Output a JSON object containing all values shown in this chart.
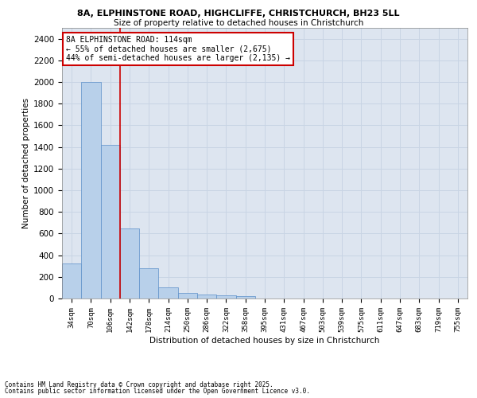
{
  "title1": "8A, ELPHINSTONE ROAD, HIGHCLIFFE, CHRISTCHURCH, BH23 5LL",
  "title2": "Size of property relative to detached houses in Christchurch",
  "xlabel": "Distribution of detached houses by size in Christchurch",
  "ylabel": "Number of detached properties",
  "footnote1": "Contains HM Land Registry data © Crown copyright and database right 2025.",
  "footnote2": "Contains public sector information licensed under the Open Government Licence v3.0.",
  "categories": [
    "34sqm",
    "70sqm",
    "106sqm",
    "142sqm",
    "178sqm",
    "214sqm",
    "250sqm",
    "286sqm",
    "322sqm",
    "358sqm",
    "395sqm",
    "431sqm",
    "467sqm",
    "503sqm",
    "539sqm",
    "575sqm",
    "611sqm",
    "647sqm",
    "683sqm",
    "719sqm",
    "755sqm"
  ],
  "values": [
    325,
    2000,
    1420,
    650,
    280,
    100,
    48,
    40,
    30,
    20,
    0,
    0,
    0,
    0,
    0,
    0,
    0,
    0,
    0,
    0,
    0
  ],
  "bar_color": "#b8d0ea",
  "bar_edge_color": "#5b8fc9",
  "grid_color": "#c8d4e4",
  "background_color": "#dde5f0",
  "vline_color": "#cc0000",
  "annotation_text": "8A ELPHINSTONE ROAD: 114sqm\n← 55% of detached houses are smaller (2,675)\n44% of semi-detached houses are larger (2,135) →",
  "annotation_box_color": "#ffffff",
  "annotation_box_edge": "#cc0000",
  "ylim": [
    0,
    2500
  ],
  "yticks": [
    0,
    200,
    400,
    600,
    800,
    1000,
    1200,
    1400,
    1600,
    1800,
    2000,
    2200,
    2400
  ]
}
